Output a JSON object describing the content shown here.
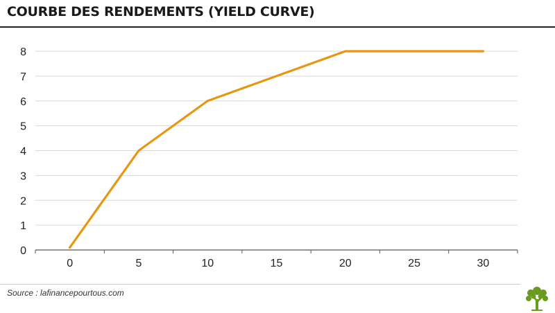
{
  "header": {
    "title": "COURBE DES RENDEMENTS (YIELD CURVE)"
  },
  "footer": {
    "source": "Source : lafinancepourtous.com",
    "logo_icon": "tree-icon"
  },
  "colors": {
    "line": "#E8960F",
    "grid": "#d9d9d9",
    "axis": "#555555",
    "logo": "#6a9a1f"
  },
  "chart_data": {
    "type": "line",
    "title": "COURBE DES RENDEMENTS (YIELD CURVE)",
    "xlabel": "",
    "ylabel": "",
    "x_ticks": [
      0,
      5,
      10,
      15,
      20,
      25,
      30
    ],
    "y_ticks": [
      0,
      1,
      2,
      3,
      4,
      5,
      6,
      7,
      8
    ],
    "xlim": [
      -2.5,
      32.5
    ],
    "ylim": [
      0,
      8
    ],
    "grid": true,
    "legend": "none",
    "series": [
      {
        "x": [
          0,
          5,
          10,
          20,
          30
        ],
        "values": [
          0.1,
          4,
          6,
          8,
          8
        ]
      }
    ]
  }
}
